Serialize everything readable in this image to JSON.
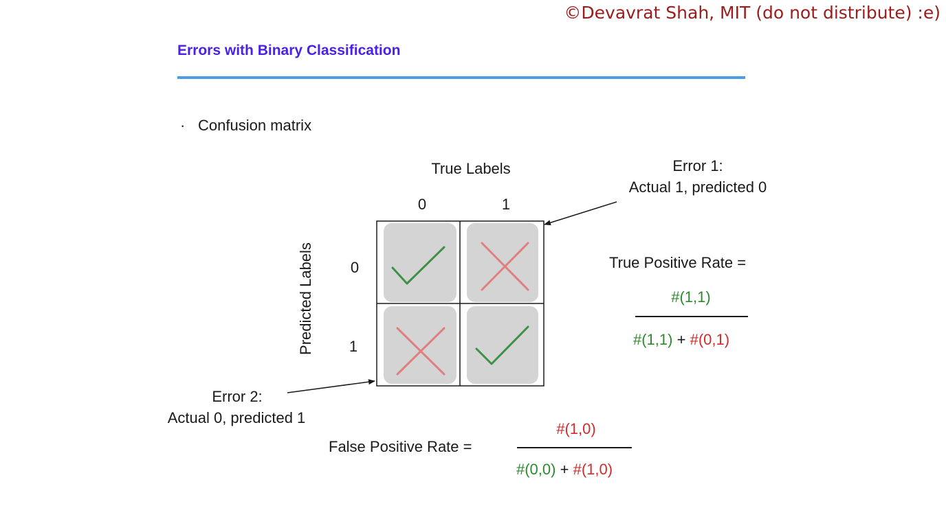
{
  "copyright": "©Devavrat Shah, MIT (do not distribute) :e)",
  "slide": {
    "title": "Errors with Binary Classification",
    "bullet": "Confusion matrix"
  },
  "matrix": {
    "column_axis_label": "True Labels",
    "row_axis_label": "Predicted Labels",
    "column_labels": [
      "0",
      "1"
    ],
    "row_labels": [
      "0",
      "1"
    ],
    "cells": [
      [
        "check-icon",
        "cross-icon"
      ],
      [
        "cross-icon",
        "check-icon"
      ]
    ],
    "colors": {
      "cell_fill": "#d4d4d4",
      "check": "#3f8f47",
      "cross": "#e07f7f",
      "grid": "#1a1a1a"
    }
  },
  "errors": {
    "error1": {
      "title": "Error 1:",
      "desc": "Actual 1, predicted 0"
    },
    "error2": {
      "title": "Error 2:",
      "desc": "Actual 0, predicted 1"
    }
  },
  "tpr": {
    "label": "True Positive Rate =",
    "numerator": "#(1,1)",
    "denominator_a": "#(1,1)",
    "plus": "+",
    "denominator_b": "#(0,1)"
  },
  "fpr": {
    "label": "False Positive Rate =",
    "numerator": "#(1,0)",
    "denominator_a": "#(0,0)",
    "plus": "+",
    "denominator_b": "#(1,0)"
  }
}
